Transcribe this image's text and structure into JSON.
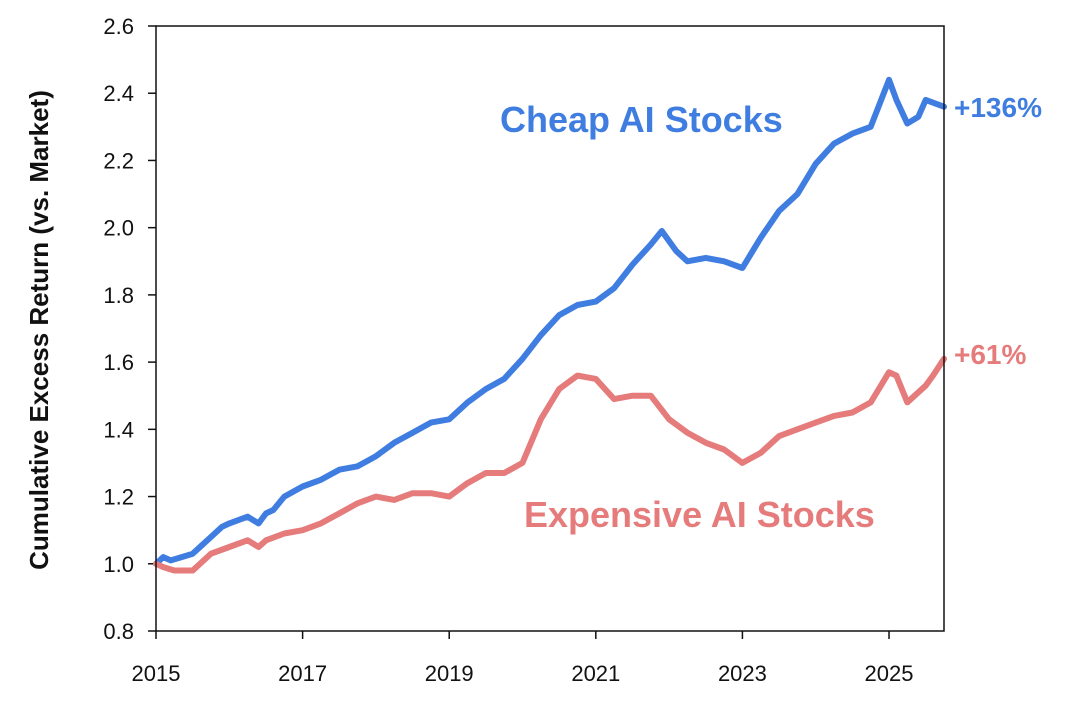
{
  "chart_data": {
    "type": "line",
    "title": "",
    "xlabel": "",
    "ylabel": "Cumulative Excess Return (vs. Market)",
    "xlim": [
      2015,
      2025.75
    ],
    "ylim": [
      0.8,
      2.6
    ],
    "x_ticks": [
      "2015",
      "2017",
      "2019",
      "2021",
      "2023",
      "2025"
    ],
    "y_ticks": [
      "0.8",
      "1.0",
      "1.2",
      "1.4",
      "1.6",
      "1.8",
      "2.0",
      "2.2",
      "2.4",
      "2.6"
    ],
    "grid": false,
    "series": [
      {
        "name": "Cheap AI Stocks",
        "color": "#3f7ee0",
        "end_annotation": "+136%",
        "x": [
          2015.0,
          2015.1,
          2015.2,
          2015.35,
          2015.5,
          2015.6,
          2015.75,
          2015.9,
          2016.0,
          2016.25,
          2016.4,
          2016.5,
          2016.6,
          2016.75,
          2017.0,
          2017.25,
          2017.5,
          2017.75,
          2018.0,
          2018.25,
          2018.5,
          2018.75,
          2019.0,
          2019.25,
          2019.5,
          2019.75,
          2020.0,
          2020.25,
          2020.5,
          2020.75,
          2021.0,
          2021.25,
          2021.5,
          2021.75,
          2021.9,
          2022.1,
          2022.25,
          2022.5,
          2022.75,
          2023.0,
          2023.25,
          2023.5,
          2023.75,
          2024.0,
          2024.25,
          2024.5,
          2024.75,
          2025.0,
          2025.1,
          2025.25,
          2025.4,
          2025.5,
          2025.75
        ],
        "values": [
          1.0,
          1.02,
          1.01,
          1.02,
          1.03,
          1.05,
          1.08,
          1.11,
          1.12,
          1.14,
          1.12,
          1.15,
          1.16,
          1.2,
          1.23,
          1.25,
          1.28,
          1.29,
          1.32,
          1.36,
          1.39,
          1.42,
          1.43,
          1.48,
          1.52,
          1.55,
          1.61,
          1.68,
          1.74,
          1.77,
          1.78,
          1.82,
          1.89,
          1.95,
          1.99,
          1.93,
          1.9,
          1.91,
          1.9,
          1.88,
          1.97,
          2.05,
          2.1,
          2.19,
          2.25,
          2.28,
          2.3,
          2.44,
          2.38,
          2.31,
          2.33,
          2.38,
          2.36
        ]
      },
      {
        "name": "Expensive AI Stocks",
        "color": "#e57b7b",
        "end_annotation": "+61%",
        "x": [
          2015.0,
          2015.1,
          2015.25,
          2015.4,
          2015.5,
          2015.6,
          2015.75,
          2016.0,
          2016.25,
          2016.4,
          2016.5,
          2016.75,
          2017.0,
          2017.25,
          2017.5,
          2017.75,
          2018.0,
          2018.25,
          2018.5,
          2018.75,
          2019.0,
          2019.25,
          2019.5,
          2019.75,
          2020.0,
          2020.25,
          2020.5,
          2020.75,
          2021.0,
          2021.25,
          2021.5,
          2021.75,
          2022.0,
          2022.25,
          2022.5,
          2022.75,
          2023.0,
          2023.25,
          2023.5,
          2023.75,
          2024.0,
          2024.25,
          2024.5,
          2024.75,
          2025.0,
          2025.1,
          2025.25,
          2025.5,
          2025.6,
          2025.75
        ],
        "values": [
          1.0,
          0.99,
          0.98,
          0.98,
          0.98,
          1.0,
          1.03,
          1.05,
          1.07,
          1.05,
          1.07,
          1.09,
          1.1,
          1.12,
          1.15,
          1.18,
          1.2,
          1.19,
          1.21,
          1.21,
          1.2,
          1.24,
          1.27,
          1.27,
          1.3,
          1.43,
          1.52,
          1.56,
          1.55,
          1.49,
          1.5,
          1.5,
          1.43,
          1.39,
          1.36,
          1.34,
          1.3,
          1.33,
          1.38,
          1.4,
          1.42,
          1.44,
          1.45,
          1.48,
          1.57,
          1.56,
          1.48,
          1.53,
          1.56,
          1.61
        ]
      }
    ]
  }
}
